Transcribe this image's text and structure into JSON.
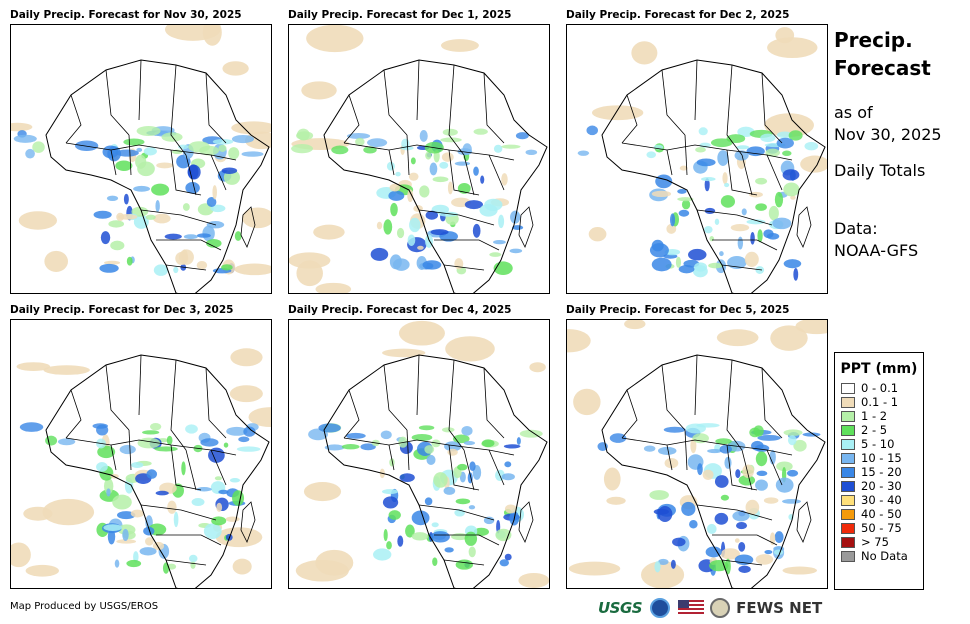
{
  "panels": [
    {
      "title": "Daily Precip. Forecast for Nov 30, 2025"
    },
    {
      "title": "Daily Precip. Forecast for Dec 1, 2025"
    },
    {
      "title": "Daily Precip. Forecast for Dec 2, 2025"
    },
    {
      "title": "Daily Precip. Forecast for Dec 3, 2025"
    },
    {
      "title": "Daily Precip. Forecast for Dec 4, 2025"
    },
    {
      "title": "Daily Precip. Forecast for Dec 5, 2025"
    }
  ],
  "side": {
    "title_line1": "Precip.",
    "title_line2": "Forecast",
    "asof_line1": "as of",
    "asof_line2": "Nov 30, 2025",
    "totals": "Daily Totals",
    "data_line1": "Data:",
    "data_line2": "NOAA-GFS"
  },
  "legend": {
    "title": "PPT (mm)",
    "items": [
      {
        "label": "0 - 0.1",
        "color": "#ffffff"
      },
      {
        "label": "0.1 - 1",
        "color": "#f0dcb9"
      },
      {
        "label": "1 - 2",
        "color": "#b5f0a8"
      },
      {
        "label": "2 - 5",
        "color": "#5fe05c"
      },
      {
        "label": "5 - 10",
        "color": "#a9f0f5"
      },
      {
        "label": "10 - 15",
        "color": "#78b6f0"
      },
      {
        "label": "15 - 20",
        "color": "#3a87e6"
      },
      {
        "label": "20 - 30",
        "color": "#1f4fd4"
      },
      {
        "label": "30 - 40",
        "color": "#ffe07a"
      },
      {
        "label": "40 - 50",
        "color": "#f59a0a"
      },
      {
        "label": "50 - 75",
        "color": "#f02a0a"
      },
      {
        "label": "> 75",
        "color": "#a51010"
      },
      {
        "label": "No Data",
        "color": "#9a9a9a"
      }
    ]
  },
  "footer": {
    "credit": "Map Produced by USGS/EROS",
    "usgs": "USGS",
    "fews": "FEWS NET"
  }
}
